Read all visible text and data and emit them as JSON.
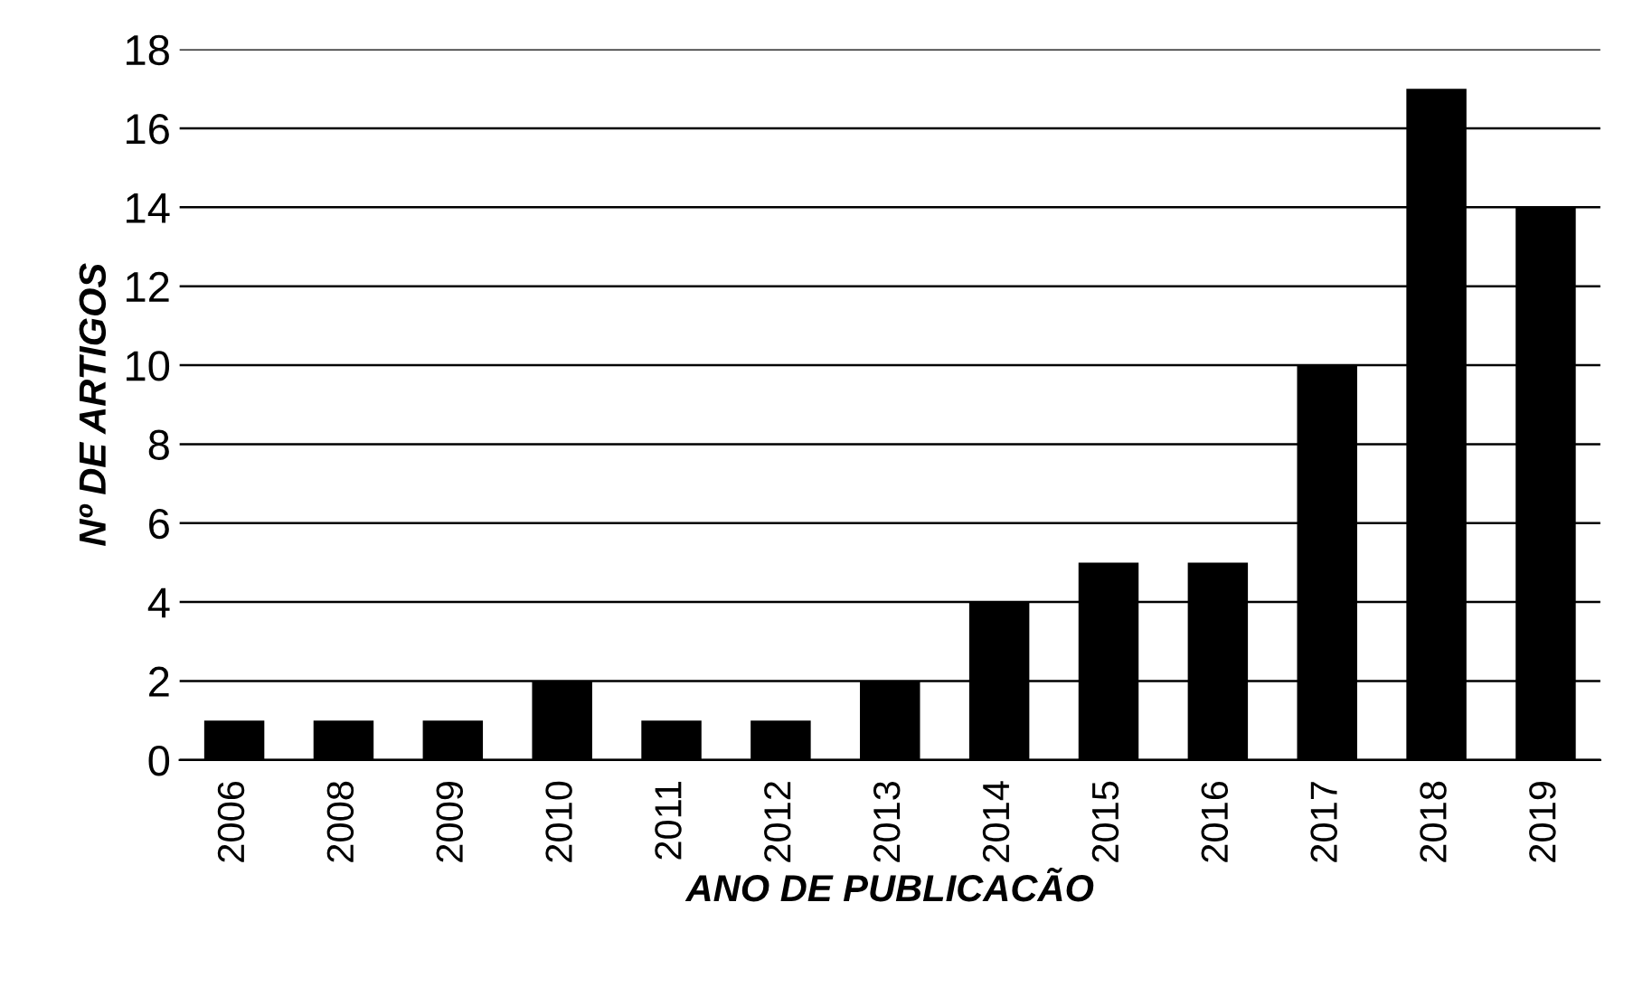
{
  "chart_data": {
    "type": "bar",
    "xlabel": "ANO DE PUBLICACÃO",
    "ylabel": "Nº DE ARTIGOS",
    "categories": [
      "2006",
      "2008",
      "2009",
      "2010",
      "2011",
      "2012",
      "2013",
      "2014",
      "2015",
      "2016",
      "2017",
      "2018",
      "2019"
    ],
    "values": [
      1,
      1,
      1,
      2,
      1,
      1,
      2,
      4,
      5,
      5,
      10,
      17,
      14
    ],
    "color": "#000000",
    "ylim": [
      0,
      18
    ],
    "yticks": [
      0,
      2,
      4,
      6,
      8,
      10,
      12,
      14,
      16,
      18
    ],
    "grid": "y"
  }
}
